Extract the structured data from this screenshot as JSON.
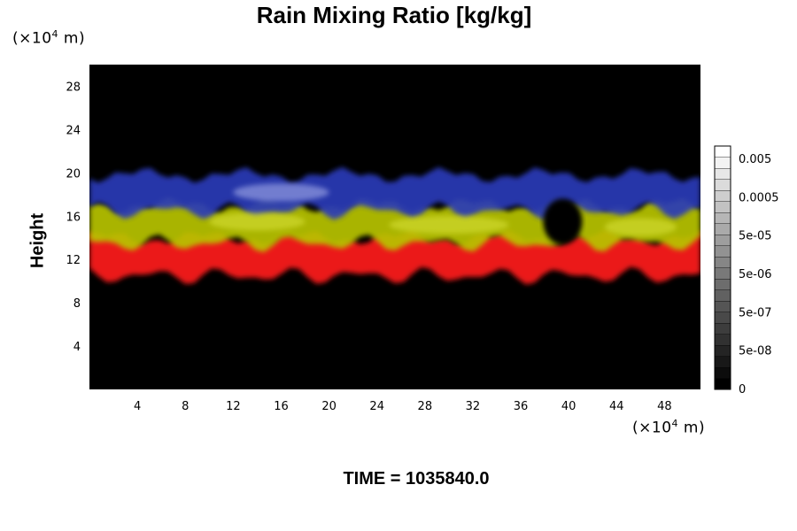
{
  "chart_data": {
    "type": "heatmap",
    "title": "Rain Mixing Ratio [kg/kg]",
    "xlabel": "",
    "ylabel": "Height",
    "x_unit_prefix": "(×10",
    "x_unit_exp": "4",
    "x_unit_suffix": " m)",
    "y_unit_prefix": "(×10",
    "y_unit_exp": "4",
    "y_unit_suffix": " m)",
    "xlim": [
      0,
      51
    ],
    "ylim": [
      0,
      30
    ],
    "x_ticks": [
      4,
      8,
      12,
      16,
      20,
      24,
      28,
      32,
      36,
      40,
      44,
      48
    ],
    "y_ticks": [
      4,
      8,
      12,
      16,
      20,
      24,
      28
    ],
    "colorbar": {
      "labels": [
        "0.005",
        "0.0005",
        "5e-05",
        "5e-06",
        "5e-07",
        "5e-08",
        "0"
      ],
      "levels": 22,
      "colors": [
        "#000000",
        "#ffffff"
      ]
    },
    "layers": [
      {
        "color": "#ff1a1a",
        "y_range": [
          10.5,
          14.0
        ]
      },
      {
        "color": "#b8c400",
        "y_range": [
          13.5,
          17.0
        ]
      },
      {
        "color": "#2a3ab8",
        "y_range": [
          16.5,
          19.8
        ]
      }
    ],
    "background": "#000000"
  },
  "footer": {
    "time_label": "TIME = 1035840.0"
  }
}
